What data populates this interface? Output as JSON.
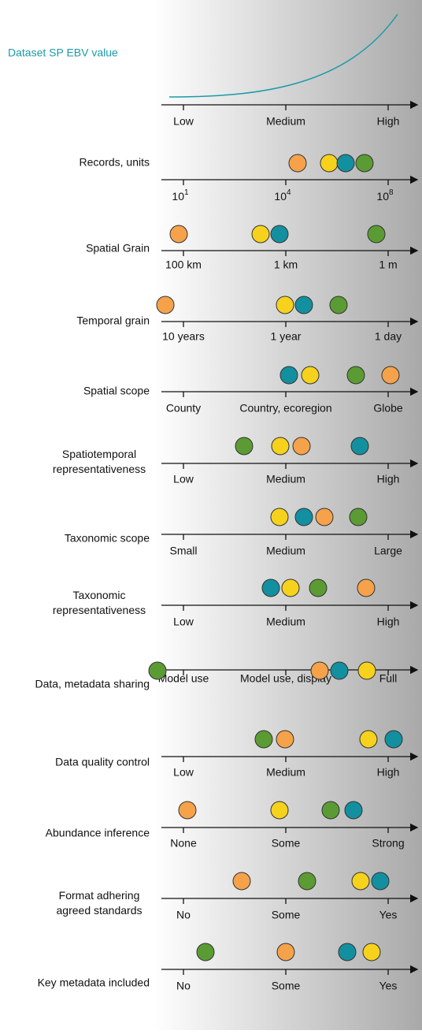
{
  "header": {
    "title": "Dataset SP EBV value",
    "axis_labels": [
      "Low",
      "Medium",
      "High"
    ],
    "curve_color": "#1a9aa8"
  },
  "rows": [
    {
      "label": [
        "Records, units"
      ],
      "ticks": [
        {
          "base": "10",
          "exp": "1"
        },
        {
          "base": "10",
          "exp": "4"
        },
        {
          "base": "10",
          "exp": "8"
        }
      ],
      "dots": [
        "#f5a24a",
        "#f6d21c",
        "#13909f",
        "#5b9b33"
      ]
    },
    {
      "label": [
        "Spatial Grain"
      ],
      "ticks": [
        "100 km",
        "1 km",
        "1 m"
      ],
      "dots": [
        "#f5a24a",
        "#f6d21c",
        "#13909f",
        "#5b9b33"
      ]
    },
    {
      "label": [
        "Temporal grain"
      ],
      "ticks": [
        "10 years",
        "1 year",
        "1 day"
      ],
      "dots": [
        "#f5a24a",
        "#f6d21c",
        "#13909f",
        "#5b9b33"
      ]
    },
    {
      "label": [
        "Spatial scope"
      ],
      "ticks": [
        "County",
        "Country, ecoregion",
        "Globe"
      ],
      "dots": [
        "#13909f",
        "#f6d21c",
        "#5b9b33",
        "#f5a24a"
      ]
    },
    {
      "label": [
        "Spatiotemporal",
        "representativeness"
      ],
      "ticks": [
        "Low",
        "Medium",
        "High"
      ],
      "dots": [
        "#5b9b33",
        "#f6d21c",
        "#f5a24a",
        "#13909f"
      ]
    },
    {
      "label": [
        "Taxonomic scope"
      ],
      "ticks": [
        "Small",
        "Medium",
        "Large"
      ],
      "dots": [
        "#f6d21c",
        "#13909f",
        "#f5a24a",
        "#5b9b33"
      ]
    },
    {
      "label": [
        "Taxonomic",
        "representativeness"
      ],
      "ticks": [
        "Low",
        "Medium",
        "High"
      ],
      "dots": [
        "#13909f",
        "#f6d21c",
        "#5b9b33",
        "#f5a24a"
      ]
    },
    {
      "label": [
        "Data, metadata sharing"
      ],
      "ticks": [
        "Model use",
        "Model use, display",
        "Full"
      ],
      "dots": [
        "#5b9b33",
        "#f5a24a",
        "#13909f",
        "#f6d21c"
      ]
    },
    {
      "label": [
        "Data quality control"
      ],
      "ticks": [
        "Low",
        "Medium",
        "High"
      ],
      "dots": [
        "#5b9b33",
        "#f5a24a",
        "#f6d21c",
        "#13909f"
      ]
    },
    {
      "label": [
        "Abundance inference"
      ],
      "ticks": [
        "None",
        "Some",
        "Strong"
      ],
      "dots": [
        "#f5a24a",
        "#f6d21c",
        "#5b9b33",
        "#13909f"
      ]
    },
    {
      "label": [
        "Format adhering",
        "agreed standards"
      ],
      "ticks": [
        "No",
        "Some",
        "Yes"
      ],
      "dots": [
        "#f5a24a",
        "#5b9b33",
        "#f6d21c",
        "#13909f"
      ]
    },
    {
      "label": [
        "Key metadata included"
      ],
      "ticks": [
        "No",
        "Some",
        "Yes"
      ],
      "dots": [
        "#5b9b33",
        "#f5a24a",
        "#13909f",
        "#f6d21c"
      ]
    }
  ]
}
